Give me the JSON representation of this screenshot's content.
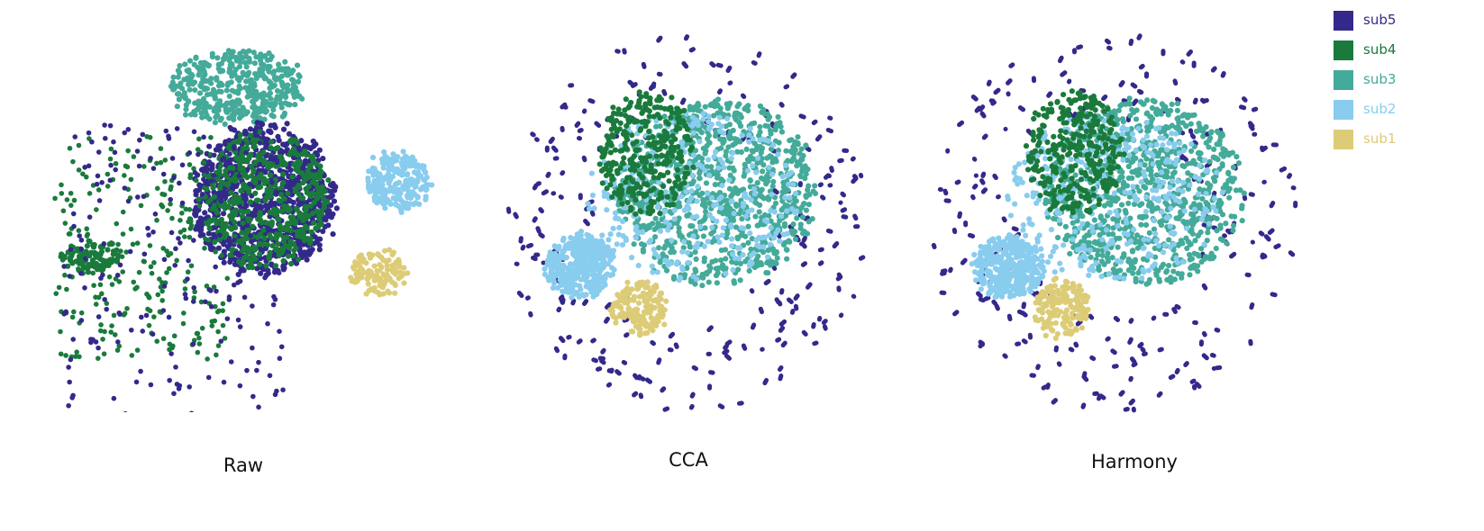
{
  "chart_data": {
    "type": "scatter",
    "series_colors": {
      "sub5": "#33298a",
      "sub4": "#1a7a3c",
      "sub3": "#44aa99",
      "sub2": "#88ccee",
      "sub1": "#ddcc77"
    },
    "legend": {
      "placement": "top-right",
      "items": [
        {
          "name": "sub5",
          "color": "#33298a"
        },
        {
          "name": "sub4",
          "color": "#1a7a3c"
        },
        {
          "name": "sub3",
          "color": "#44aa99"
        },
        {
          "name": "sub2",
          "color": "#88ccee"
        },
        {
          "name": "sub1",
          "color": "#ddcc77"
        }
      ]
    },
    "panels": [
      {
        "caption": "Raw",
        "grid": false,
        "axes": false,
        "xlim": [
          0,
          100
        ],
        "ylim": [
          0,
          100
        ],
        "clusters": [
          {
            "series": "sub3",
            "shape": "blob",
            "center": [
              46,
              85
            ],
            "radius": [
              17,
              10
            ],
            "count": 420
          },
          {
            "series": "sub2",
            "shape": "blob",
            "center": [
              87,
              60
            ],
            "radius": [
              8,
              8
            ],
            "count": 240
          },
          {
            "series": "sub1",
            "shape": "blob",
            "center": [
              82,
              36
            ],
            "radius": [
              7,
              6
            ],
            "count": 120
          },
          {
            "series": "sub5",
            "shape": "blob",
            "center": [
              53,
              55
            ],
            "radius": [
              18,
              20
            ],
            "count": 900
          },
          {
            "series": "sub4",
            "shape": "blob",
            "center": [
              53,
              55
            ],
            "radius": [
              16,
              18
            ],
            "count": 500
          },
          {
            "series": "sub4",
            "shape": "blob",
            "center": [
              9,
              40
            ],
            "radius": [
              7,
              4
            ],
            "count": 90
          },
          {
            "series": "sub4",
            "shape": "scatter",
            "center": [
              22,
              42
            ],
            "radius": [
              22,
              30
            ],
            "count": 260
          },
          {
            "series": "sub5",
            "shape": "scatter",
            "center": [
              30,
              35
            ],
            "radius": [
              28,
              40
            ],
            "count": 200
          }
        ]
      },
      {
        "caption": "CCA",
        "grid": false,
        "axes": false,
        "xlim": [
          0,
          100
        ],
        "ylim": [
          0,
          100
        ],
        "clusters": [
          {
            "series": "sub5",
            "shape": "ring",
            "center": [
              50,
              50
            ],
            "radius": [
              48,
              49
            ],
            "count": 230
          },
          {
            "series": "sub3",
            "shape": "blob",
            "center": [
              58,
              58
            ],
            "radius": [
              26,
              24
            ],
            "count": 900
          },
          {
            "series": "sub2",
            "shape": "blob",
            "center": [
              52,
              57
            ],
            "radius": [
              28,
              22
            ],
            "count": 320
          },
          {
            "series": "sub4",
            "shape": "blob",
            "center": [
              40,
              68
            ],
            "radius": [
              12,
              16
            ],
            "count": 320
          },
          {
            "series": "sub2",
            "shape": "blob",
            "center": [
              23,
              39
            ],
            "radius": [
              9,
              8
            ],
            "count": 380
          },
          {
            "series": "sub1",
            "shape": "blob",
            "center": [
              38,
              28
            ],
            "radius": [
              7,
              7
            ],
            "count": 160
          }
        ]
      },
      {
        "caption": "Harmony",
        "grid": false,
        "axes": false,
        "xlim": [
          0,
          100
        ],
        "ylim": [
          0,
          100
        ],
        "clusters": [
          {
            "series": "sub5",
            "shape": "ring",
            "center": [
              50,
              50
            ],
            "radius": [
              48,
              49
            ],
            "count": 230
          },
          {
            "series": "sub3",
            "shape": "blob",
            "center": [
              58,
              58
            ],
            "radius": [
              26,
              24
            ],
            "count": 900
          },
          {
            "series": "sub2",
            "shape": "blob",
            "center": [
              50,
              57
            ],
            "radius": [
              28,
              22
            ],
            "count": 320
          },
          {
            "series": "sub4",
            "shape": "blob",
            "center": [
              40,
              68
            ],
            "radius": [
              12,
              16
            ],
            "count": 320
          },
          {
            "series": "sub2",
            "shape": "blob",
            "center": [
              23,
              39
            ],
            "radius": [
              9,
              8
            ],
            "count": 380
          },
          {
            "series": "sub1",
            "shape": "blob",
            "center": [
              37,
              28
            ],
            "radius": [
              7,
              7
            ],
            "count": 160
          }
        ]
      }
    ]
  }
}
